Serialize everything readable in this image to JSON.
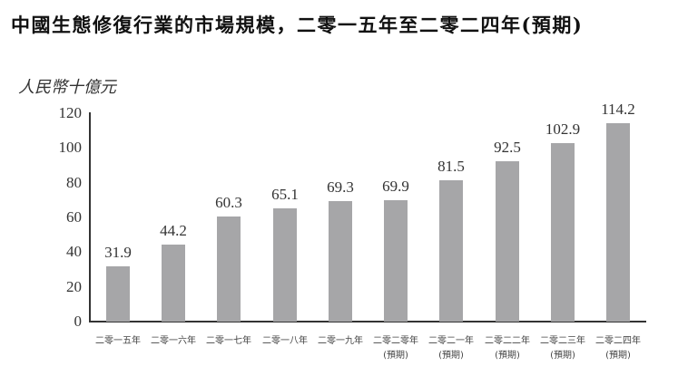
{
  "title": "中國生態修復行業的市場規模，二零一五年至二零二四年(預期)",
  "unit_label": "人民幣十億元",
  "y_ticks": [
    "0",
    "20",
    "40",
    "60",
    "80",
    "100",
    "120"
  ],
  "colors": {
    "bar": "#a6a6a8",
    "axis": "#333333"
  },
  "chart_data": {
    "type": "bar",
    "title": "中國生態修復行業的市場規模，二零一五年至二零二四年(預期)",
    "xlabel": "",
    "ylabel": "人民幣十億元",
    "ylim": [
      0,
      120
    ],
    "grid": false,
    "legend": null,
    "categories": [
      "二零一五年",
      "二零一六年",
      "二零一七年",
      "二零一八年",
      "二零一九年",
      "二零二零年(預期)",
      "二零二一年(預期)",
      "二零二二年(預期)",
      "二零二三年(預期)",
      "二零二四年(預期)"
    ],
    "values": [
      31.9,
      44.2,
      60.3,
      65.1,
      69.3,
      69.9,
      81.5,
      92.5,
      102.9,
      114.2
    ]
  },
  "bars": [
    {
      "label": "二零一五年",
      "sub": "",
      "value": "31.9"
    },
    {
      "label": "二零一六年",
      "sub": "",
      "value": "44.2"
    },
    {
      "label": "二零一七年",
      "sub": "",
      "value": "60.3"
    },
    {
      "label": "二零一八年",
      "sub": "",
      "value": "65.1"
    },
    {
      "label": "二零一九年",
      "sub": "",
      "value": "69.3"
    },
    {
      "label": "二零二零年",
      "sub": "(預期)",
      "value": "69.9"
    },
    {
      "label": "二零二一年",
      "sub": "(預期)",
      "value": "81.5"
    },
    {
      "label": "二零二二年",
      "sub": "(預期)",
      "value": "92.5"
    },
    {
      "label": "二零二三年",
      "sub": "(預期)",
      "value": "102.9"
    },
    {
      "label": "二零二四年",
      "sub": "(預期)",
      "value": "114.2"
    }
  ]
}
